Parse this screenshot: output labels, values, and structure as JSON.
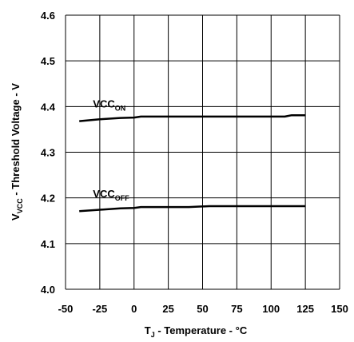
{
  "chart_data": {
    "type": "line",
    "xlabel": {
      "main": "T",
      "sub": "J",
      "rest": " - Temperature - °C"
    },
    "ylabel": {
      "main": "V",
      "sub": "VCC",
      "rest": " - Threshold Voltage - V"
    },
    "xlim": [
      -50,
      150
    ],
    "ylim": [
      4.0,
      4.6
    ],
    "xticks": [
      "-50",
      "-25",
      "0",
      "25",
      "50",
      "75",
      "100",
      "125",
      "150"
    ],
    "yticks": [
      "4.0",
      "4.1",
      "4.2",
      "4.3",
      "4.4",
      "4.5",
      "4.6"
    ],
    "grid": true,
    "series": [
      {
        "name": "VCC",
        "name_sub": "ON",
        "x": [
          -40,
          -25,
          -10,
          0,
          5,
          25,
          50,
          75,
          100,
          110,
          115,
          125
        ],
        "y": [
          4.368,
          4.372,
          4.375,
          4.376,
          4.378,
          4.378,
          4.378,
          4.378,
          4.378,
          4.378,
          4.381,
          4.381
        ]
      },
      {
        "name": "VCC",
        "name_sub": "OFF",
        "x": [
          -40,
          -25,
          -10,
          0,
          5,
          25,
          40,
          55,
          75,
          100,
          125
        ],
        "y": [
          4.171,
          4.174,
          4.177,
          4.178,
          4.18,
          4.18,
          4.18,
          4.182,
          4.182,
          4.182,
          4.182
        ]
      }
    ]
  }
}
